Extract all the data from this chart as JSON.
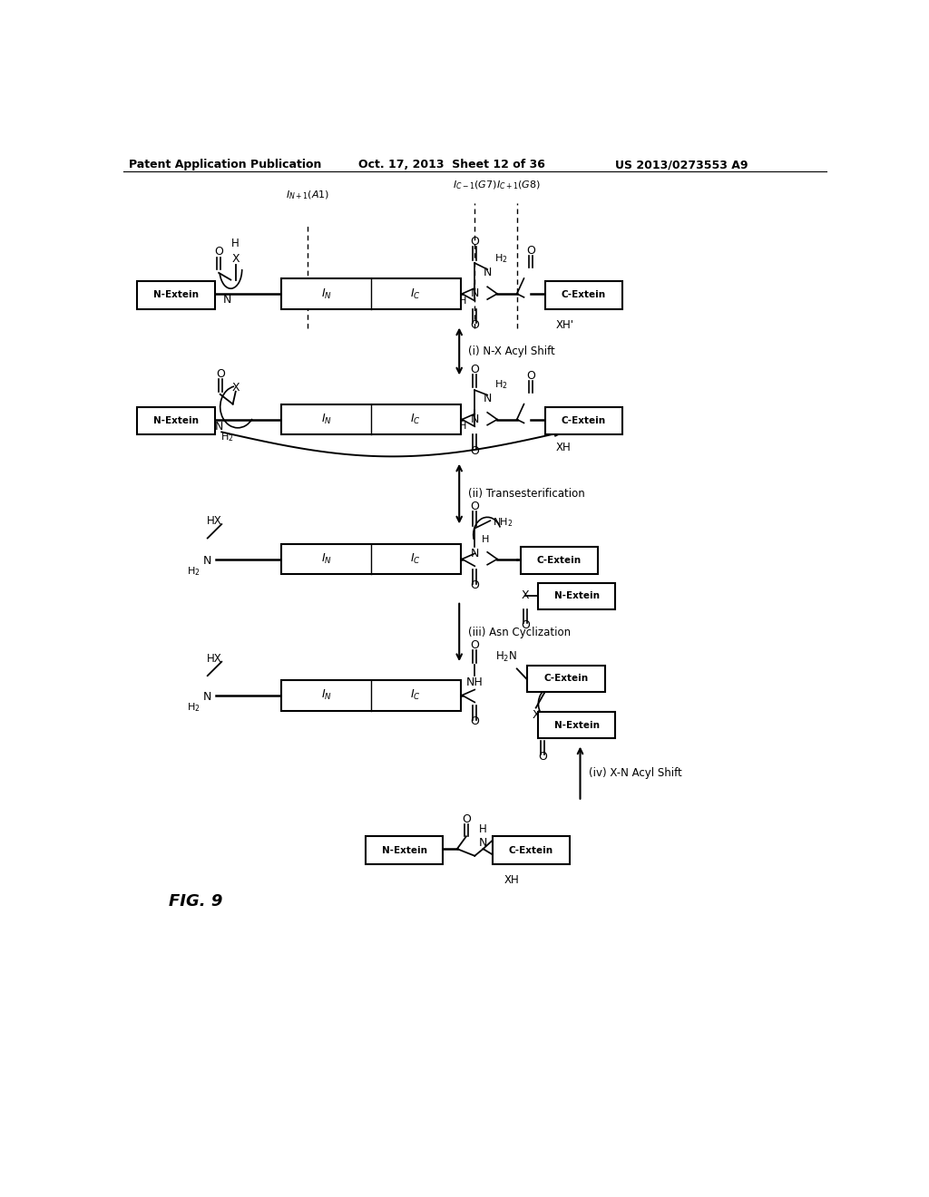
{
  "title_line1": "Patent Application Publication",
  "title_line2": "Oct. 17, 2013  Sheet 12 of 36",
  "title_line3": "US 2013/0273553 A9",
  "fig_label": "FIG. 9",
  "background_color": "#ffffff",
  "text_color": "#000000",
  "step1_label": "(i) N-X Acyl Shift",
  "step2_label": "(ii) Transesterification",
  "step3_label": "(iii) Asn Cyclization",
  "step4_label": "(iv) X-N Acyl Shift"
}
